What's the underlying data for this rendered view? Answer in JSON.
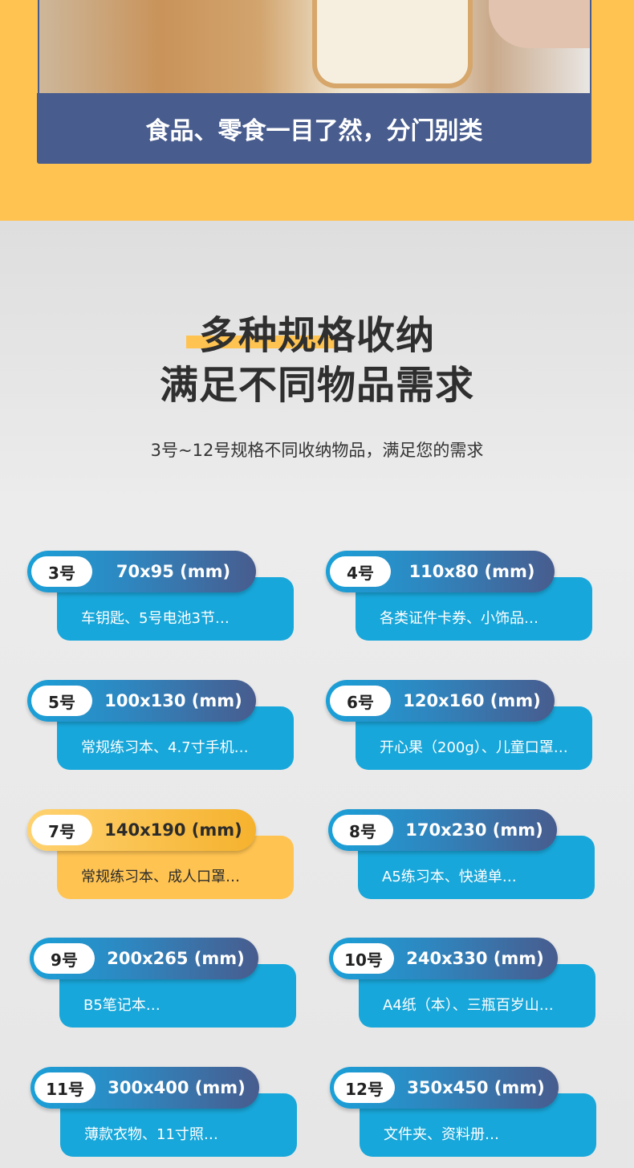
{
  "banner": {
    "caption": "食品、零食一目了然，分门别类"
  },
  "heading": {
    "line1": "多种规格收纳",
    "line2": "满足不同物品需求",
    "subtitle": "3号~12号规格不同收纳物品，满足您的需求"
  },
  "colors": {
    "yellow": "#ffc351",
    "navy": "#485c8e",
    "blue": "#18a7da"
  },
  "sizes": [
    {
      "tag": "3号",
      "size": "70x95 (mm)",
      "desc": "车钥匙、5号电池3节…"
    },
    {
      "tag": "4号",
      "size": "110x80 (mm)",
      "desc": "各类证件卡券、小饰品…"
    },
    {
      "tag": "5号",
      "size": "100x130 (mm)",
      "desc": "常规练习本、4.7寸手机…"
    },
    {
      "tag": "6号",
      "size": "120x160 (mm)",
      "desc": "开心果（200g）、儿童口罩…"
    },
    {
      "tag": "7号",
      "size": "140x190 (mm)",
      "desc": "常规练习本、成人口罩…",
      "highlighted": true
    },
    {
      "tag": "8号",
      "size": "170x230 (mm)",
      "desc": "A5练习本、快递单…"
    },
    {
      "tag": "9号",
      "size": "200x265 (mm)",
      "desc": "B5笔记本…"
    },
    {
      "tag": "10号",
      "size": "240x330 (mm)",
      "desc": "A4纸（本）、三瓶百岁山…"
    },
    {
      "tag": "11号",
      "size": "300x400 (mm)",
      "desc": "薄款衣物、11寸照…"
    },
    {
      "tag": "12号",
      "size": "350x450 (mm)",
      "desc": "文件夹、资料册…"
    }
  ]
}
